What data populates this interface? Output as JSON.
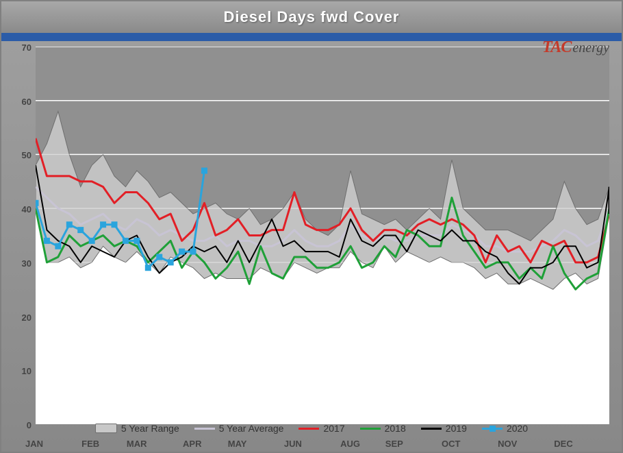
{
  "chart": {
    "type": "line-with-band",
    "title": "Diesel Days fwd Cover",
    "title_color": "#ffffff",
    "title_fontsize": 22,
    "outer_border_color": "#808080",
    "header_gradient": [
      "#a8a8a8",
      "#8a8a8a"
    ],
    "stripe_color": "#2b5ca8",
    "plot_background_top": "#909090",
    "plot_background_bottom": "#ffffff",
    "grid_color": "#ffffff",
    "axis_text_color": "#444444",
    "axis_fontsize": 13,
    "yaxis": {
      "min": 0,
      "max": 70,
      "ticks": [
        0,
        10,
        20,
        30,
        40,
        50,
        60,
        70
      ]
    },
    "xaxis": {
      "labels": [
        "JAN",
        "FEB",
        "MAR",
        "APR",
        "MAY",
        "JUN",
        "AUG",
        "SEP",
        "OCT",
        "NOV",
        "DEC"
      ],
      "label_positions_weeks": [
        0,
        5,
        9,
        14,
        18,
        23,
        28,
        32,
        37,
        42,
        47
      ],
      "weeks_total": 52
    },
    "band": {
      "label": "5 Year Range",
      "fill": "#c8c8c8",
      "stroke": "#6e6e6e",
      "upper": [
        48,
        52,
        58,
        50,
        44,
        48,
        50,
        46,
        44,
        47,
        45,
        42,
        43,
        41,
        39,
        40,
        41,
        39,
        38,
        40,
        37,
        38,
        40,
        43,
        38,
        36,
        35,
        37,
        47,
        39,
        38,
        37,
        38,
        36,
        38,
        40,
        38,
        49,
        40,
        38,
        36,
        36,
        36,
        35,
        34,
        36,
        38,
        45,
        40,
        37,
        38,
        44
      ],
      "lower": [
        40,
        30,
        30,
        31,
        29,
        30,
        33,
        31,
        30,
        32,
        30,
        28,
        31,
        30,
        29,
        27,
        28,
        27,
        27,
        27,
        29,
        28,
        27,
        30,
        29,
        28,
        29,
        29,
        32,
        30,
        29,
        33,
        30,
        32,
        31,
        30,
        31,
        30,
        30,
        29,
        27,
        28,
        26,
        26,
        27,
        26,
        25,
        27,
        28,
        26,
        27,
        39
      ]
    },
    "series": [
      {
        "name": "5 Year Average",
        "color": "#c8c4d4",
        "width": 3,
        "marker": null,
        "values": [
          44,
          42,
          40,
          39,
          37,
          38,
          39,
          37,
          36,
          38,
          37,
          35,
          36,
          35,
          34,
          34,
          35,
          33,
          34,
          34,
          33,
          33,
          34,
          36,
          34,
          33,
          33,
          34,
          37,
          35,
          34,
          35,
          34,
          34,
          35,
          35,
          35,
          37,
          36,
          35,
          33,
          33,
          32,
          32,
          32,
          33,
          34,
          36,
          35,
          33,
          34,
          40
        ]
      },
      {
        "name": "2017",
        "color": "#e21f26",
        "width": 3,
        "marker": null,
        "values": [
          53,
          46,
          46,
          46,
          45,
          45,
          44,
          41,
          43,
          43,
          41,
          38,
          39,
          34,
          36,
          41,
          35,
          36,
          38,
          35,
          35,
          36,
          36,
          43,
          37,
          36,
          36,
          37,
          40,
          36,
          34,
          36,
          36,
          35,
          37,
          38,
          37,
          38,
          37,
          35,
          30,
          35,
          32,
          33,
          30,
          34,
          33,
          34,
          30,
          30,
          31,
          39
        ]
      },
      {
        "name": "2018",
        "color": "#1fa038",
        "width": 3,
        "marker": null,
        "values": [
          40,
          30,
          31,
          35,
          33,
          34,
          35,
          33,
          34,
          33,
          30,
          32,
          34,
          29,
          32,
          30,
          27,
          29,
          32,
          26,
          33,
          28,
          27,
          31,
          31,
          29,
          29,
          30,
          33,
          29,
          30,
          33,
          31,
          36,
          35,
          33,
          33,
          42,
          35,
          32,
          29,
          30,
          30,
          27,
          29,
          27,
          33,
          28,
          25,
          27,
          28,
          40
        ]
      },
      {
        "name": "2019",
        "color": "#000000",
        "width": 2,
        "marker": null,
        "values": [
          48,
          36,
          34,
          33,
          30,
          33,
          32,
          31,
          34,
          35,
          31,
          28,
          30,
          31,
          33,
          32,
          33,
          30,
          34,
          30,
          34,
          38,
          33,
          34,
          32,
          32,
          32,
          31,
          38,
          34,
          33,
          35,
          35,
          32,
          36,
          35,
          34,
          36,
          34,
          34,
          32,
          31,
          28,
          26,
          29,
          29,
          30,
          33,
          33,
          29,
          30,
          44
        ]
      },
      {
        "name": "2020",
        "color": "#2aa4dd",
        "width": 3,
        "marker": "square",
        "marker_fill": "#2aa4dd",
        "marker_size": 8,
        "values": [
          41,
          34,
          33,
          37,
          36,
          34,
          37,
          37,
          34,
          34,
          29,
          31,
          30,
          32,
          32,
          47
        ]
      }
    ],
    "legend": {
      "position": "bottom-center",
      "fontsize": 14,
      "text_color": "#333333",
      "items": [
        "5 Year Range",
        "5 Year Average",
        "2017",
        "2018",
        "2019",
        "2020"
      ]
    },
    "logo": {
      "tac_text": "TAC",
      "tac_color": "#c43a2a",
      "energy_text": "energy",
      "energy_color": "#444444",
      "font_family": "Times New Roman"
    }
  }
}
